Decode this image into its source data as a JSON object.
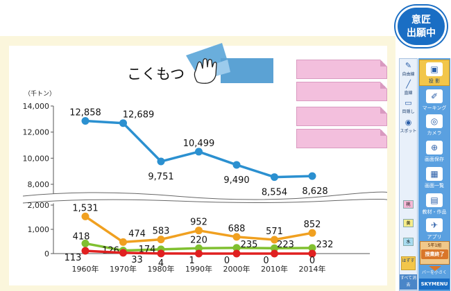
{
  "badge": {
    "line1": "意匠",
    "line2": "出願中"
  },
  "board": {
    "title": "こくもつ",
    "notes": [
      "",
      "",
      "",
      ""
    ]
  },
  "toolbar": {
    "left_tools": [
      {
        "icon": "freehand-icon",
        "glyph": "✎",
        "label": "自由線"
      },
      {
        "icon": "straight-line-icon",
        "glyph": "╱",
        "label": "直線"
      },
      {
        "icon": "blind-icon",
        "glyph": "▭",
        "label": "目隠し"
      },
      {
        "icon": "spotlight-icon",
        "glyph": "◉",
        "label": "スポット"
      }
    ],
    "right_tools": [
      {
        "icon": "projector-icon",
        "glyph": "▣",
        "label": "投 影",
        "active": true
      },
      {
        "icon": "marking-icon",
        "glyph": "✐",
        "label": "マーキング",
        "active": false
      },
      {
        "icon": "camera-icon",
        "glyph": "◎",
        "label": "カメラ",
        "active": false
      },
      {
        "icon": "save-screen-icon",
        "glyph": "⊕",
        "label": "画面保存",
        "active": false
      },
      {
        "icon": "screen-list-icon",
        "glyph": "▦",
        "label": "画面一覧",
        "active": false
      },
      {
        "icon": "materials-icon",
        "glyph": "▤",
        "label": "教材・作品",
        "active": false
      },
      {
        "icon": "apps-icon",
        "glyph": "✈",
        "label": "アプリ",
        "active": false
      }
    ],
    "colors": [
      {
        "label": "桃",
        "color": "#f5b8d6"
      },
      {
        "label": "黄",
        "color": "#f6ec8a"
      },
      {
        "label": "水",
        "color": "#a8dcf0"
      }
    ],
    "hazusu": "はずす",
    "clear_all": "すべて消去",
    "end_class_top": "5年1組",
    "end_class": "授業終了",
    "minimize": "バーを小さく",
    "brand": "SKYMENU"
  },
  "chart_data": {
    "type": "line",
    "unit_label": "（千トン）",
    "categories": [
      "1960年",
      "1970年",
      "1980年",
      "1990年",
      "2000年",
      "2010年",
      "2014年"
    ],
    "upper_axis": {
      "ylim": [
        8000,
        14000
      ],
      "ticks": [
        "8,000",
        "10,000",
        "12,000",
        "14,000"
      ]
    },
    "lower_axis": {
      "ylim": [
        0,
        2000
      ],
      "ticks": [
        "0",
        "1,000",
        "2,000"
      ]
    },
    "grid": false,
    "series": [
      {
        "color": "#2b90d0",
        "axis": "upper",
        "values": [
          12858,
          12689,
          9751,
          10499,
          9490,
          8554,
          8628
        ],
        "labels": [
          "12,858",
          "12,689",
          "9,751",
          "10,499",
          "9,490",
          "8,554",
          "8,628"
        ]
      },
      {
        "color": "#f0a020",
        "axis": "lower",
        "values": [
          1531,
          474,
          583,
          952,
          688,
          571,
          852
        ],
        "labels": [
          "1,531",
          "474",
          "583",
          "952",
          "688",
          "571",
          "852"
        ]
      },
      {
        "color": "#80c030",
        "axis": "lower",
        "values": [
          418,
          126,
          174,
          220,
          235,
          223,
          232
        ],
        "labels": [
          "418",
          "126",
          "174",
          "220",
          "235",
          "223",
          "232"
        ]
      },
      {
        "color": "#e02020",
        "axis": "lower",
        "values": [
          113,
          33,
          4,
          1,
          0,
          0,
          0
        ],
        "labels": [
          "113",
          "33",
          "4",
          "1",
          "0",
          "0",
          "0"
        ]
      }
    ]
  }
}
